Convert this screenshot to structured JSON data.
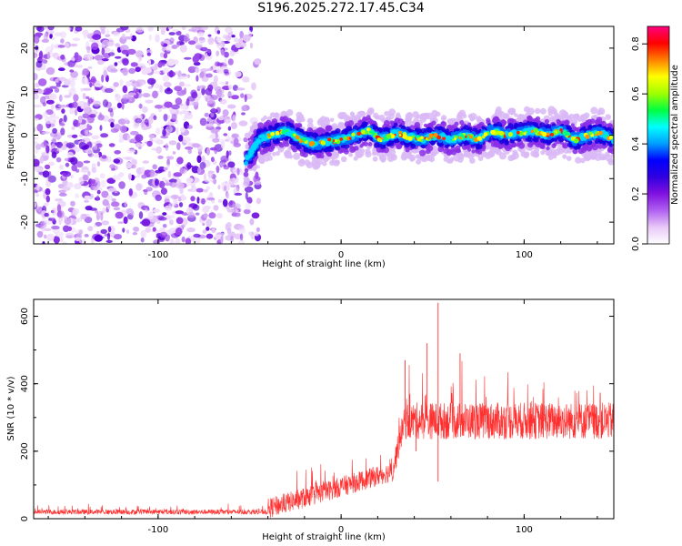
{
  "title": "S196.2025.272.17.45.C34",
  "chart_data": [
    {
      "type": "heatmap",
      "id": "spectrogram",
      "title": "S196.2025.272.17.45.C34",
      "xlabel": "Height of straight line (km)",
      "ylabel": "Frequency (Hz)",
      "xlim": [
        -168,
        149
      ],
      "ylim": [
        -25,
        25
      ],
      "xticks": [
        -100,
        0,
        100
      ],
      "yticks": [
        -20,
        -10,
        0,
        10,
        20
      ],
      "colorbar": {
        "label": "Normalized spectral amplitude",
        "range": [
          0.0,
          0.87
        ],
        "ticks": [
          0.0,
          0.2,
          0.4,
          0.6,
          0.8
        ],
        "colors": [
          "#ffffff",
          "#e8c8f8",
          "#b060f0",
          "#8010e0",
          "#3000e0",
          "#0000ff",
          "#00a0ff",
          "#00ffff",
          "#00ff40",
          "#a0ff00",
          "#ffff00",
          "#ff8000",
          "#ff0000",
          "#ff0080"
        ]
      },
      "noise_region_km": [
        -168,
        -45
      ],
      "signal_track": [
        {
          "x": -52,
          "f": -6
        },
        {
          "x": -45,
          "f": -1
        },
        {
          "x": -38,
          "f": 0
        },
        {
          "x": -30,
          "f": 1
        },
        {
          "x": -22,
          "f": -1
        },
        {
          "x": -15,
          "f": -2
        },
        {
          "x": -8,
          "f": -1.5
        },
        {
          "x": 0,
          "f": -1
        },
        {
          "x": 8,
          "f": 0
        },
        {
          "x": 15,
          "f": 1
        },
        {
          "x": 22,
          "f": -1
        },
        {
          "x": 30,
          "f": 0.5
        },
        {
          "x": 38,
          "f": -0.5
        },
        {
          "x": 45,
          "f": -1
        },
        {
          "x": 52,
          "f": 0
        },
        {
          "x": 60,
          "f": -1
        },
        {
          "x": 68,
          "f": 0
        },
        {
          "x": 75,
          "f": -1
        },
        {
          "x": 82,
          "f": 1
        },
        {
          "x": 90,
          "f": 0
        },
        {
          "x": 97,
          "f": 0.5
        },
        {
          "x": 105,
          "f": 1
        },
        {
          "x": 112,
          "f": 0
        },
        {
          "x": 120,
          "f": 1
        },
        {
          "x": 128,
          "f": -1
        },
        {
          "x": 135,
          "f": 0
        },
        {
          "x": 142,
          "f": 0.5
        },
        {
          "x": 149,
          "f": -1
        }
      ]
    },
    {
      "type": "line",
      "id": "snr",
      "xlabel": "Height of straight line (km)",
      "ylabel": "SNR (10 * v/v)",
      "xlim": [
        -168,
        149
      ],
      "ylim": [
        0,
        650
      ],
      "xticks": [
        -100,
        0,
        100
      ],
      "yticks": [
        0,
        200,
        400,
        600
      ],
      "color": "#ff3030",
      "series": [
        {
          "name": "SNR",
          "segments": [
            {
              "x": [
                -168,
                -40
              ],
              "base": 20,
              "spread": 15
            },
            {
              "x": [
                -40,
                28
              ],
              "base": [
                30,
                140
              ],
              "spread": 60
            },
            {
              "x": [
                28,
                35
              ],
              "base": [
                140,
                300
              ],
              "spread": 80
            },
            {
              "x": [
                35,
                149
              ],
              "base": 290,
              "spread": 110
            }
          ],
          "spikes": [
            {
              "x": 53,
              "y": 640
            },
            {
              "x": 35,
              "y": 470
            },
            {
              "x": 47,
              "y": 520
            },
            {
              "x": 65,
              "y": 490
            },
            {
              "x": 53,
              "y": 110
            },
            {
              "x": 41,
              "y": 200
            }
          ]
        }
      ]
    }
  ]
}
